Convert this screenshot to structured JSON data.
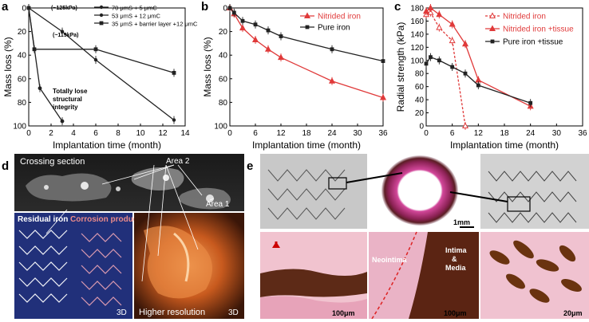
{
  "panels": {
    "a": {
      "letter": "a",
      "chart_data": {
        "type": "line",
        "xlabel": "Implantation time (month)",
        "ylabel": "Mass loss (%)",
        "xlim": [
          0,
          14
        ],
        "ylim": [
          0,
          100
        ],
        "y_inverted": true,
        "x_ticks": [
          "0",
          "2",
          "4",
          "6",
          "8",
          "10",
          "12",
          "14"
        ],
        "y_ticks": [
          "0",
          "20",
          "40",
          "60",
          "80",
          "100"
        ],
        "legend_position": "top-right",
        "series": [
          {
            "name": "70 μmS + 5 μmC",
            "x": [
              0,
              3,
              6,
              13
            ],
            "y": [
              0,
              20,
              44,
              95
            ],
            "color": "#222222"
          },
          {
            "name": "53 μmS + 12 μmC",
            "x": [
              0,
              1,
              3
            ],
            "y": [
              0,
              68,
              96
            ],
            "color": "#222222"
          },
          {
            "name": "35 μmS + barrier layer +12 μmC",
            "x": [
              0,
              0.5,
              6,
              13
            ],
            "y": [
              0,
              35,
              35,
              55
            ],
            "color": "#222222"
          }
        ],
        "annotations": [
          "(~125kPa)",
          "(~119kPa)",
          "Totally lose structural integrity"
        ]
      }
    },
    "b": {
      "letter": "b",
      "chart_data": {
        "type": "line",
        "xlabel": "Implantation time (month)",
        "ylabel": "Mass loss (%)",
        "xlim": [
          0,
          36
        ],
        "ylim": [
          0,
          100
        ],
        "y_inverted": true,
        "x_ticks": [
          "0",
          "6",
          "12",
          "18",
          "24",
          "30",
          "36"
        ],
        "y_ticks": [
          "0",
          "20",
          "40",
          "60",
          "80",
          "100"
        ],
        "legend_position": "top-right",
        "series": [
          {
            "name": "Nitrided iron",
            "x": [
              0,
              1,
              3,
              6,
              9,
              12,
              24,
              36
            ],
            "y": [
              0,
              5,
              17,
              27,
              35,
              42,
              62,
              76
            ],
            "color": "#e03a3a"
          },
          {
            "name": "Pure iron",
            "x": [
              0,
              1,
              3,
              6,
              9,
              12,
              24,
              36
            ],
            "y": [
              0,
              4,
              11,
              14,
              19,
              24,
              35,
              45
            ],
            "color": "#222222"
          }
        ]
      }
    },
    "c": {
      "letter": "c",
      "chart_data": {
        "type": "line",
        "xlabel": "Implantation time (month)",
        "ylabel": "Radial strength (kPa)",
        "xlim": [
          0,
          36
        ],
        "ylim": [
          0,
          180
        ],
        "x_ticks": [
          "0",
          "6",
          "12",
          "18",
          "24",
          "30",
          "36"
        ],
        "y_ticks": [
          "0",
          "20",
          "40",
          "60",
          "80",
          "100",
          "120",
          "140",
          "160",
          "180"
        ],
        "legend_position": "top-right",
        "series": [
          {
            "name": "Nitrided iron",
            "x": [
              0,
              1,
              3,
              6,
              9
            ],
            "y": [
              170,
              173,
              150,
              130,
              0
            ],
            "color": "#e03a3a",
            "dashed": true
          },
          {
            "name": "Nitrided iron +tissue",
            "x": [
              0,
              1,
              3,
              6,
              9,
              12,
              24
            ],
            "y": [
              175,
              180,
              170,
              155,
              125,
              70,
              30
            ],
            "color": "#e03a3a"
          },
          {
            "name": "Pure iron +tissue",
            "x": [
              0,
              1,
              3,
              6,
              9,
              12,
              24
            ],
            "y": [
              95,
              105,
              100,
              90,
              80,
              62,
              35
            ],
            "color": "#222222"
          }
        ]
      }
    },
    "d": {
      "letter": "d",
      "labels": {
        "crossing": "Crossing section",
        "area2": "Area 2",
        "area1": "Area 1",
        "residual": "Residual iron",
        "corrosion": "Corrosion products",
        "higher": "Higher resolution",
        "d3a": "3D",
        "d3b": "3D"
      }
    },
    "e": {
      "letter": "e",
      "labels": {
        "scale_1mm": "1mm",
        "scale_100a": "100μm",
        "scale_100b": "100μm",
        "scale_20": "20μm",
        "neointima": "Neointima",
        "intima": "Intima",
        "amp": "&",
        "media": "Media"
      }
    }
  }
}
